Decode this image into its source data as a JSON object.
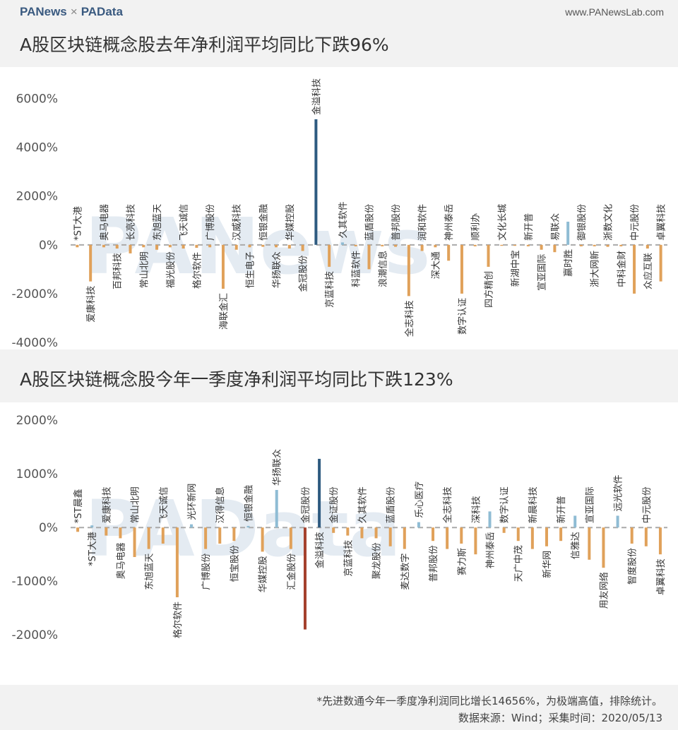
{
  "header": {
    "logo_left": "PANews",
    "times": "×",
    "logo_right": "PAData",
    "site": "www.PANewsLab.com"
  },
  "watermark": "PANews",
  "watermark2": "PAData",
  "notes": {
    "footnote": "*先进数通今年一季度净利润同比增长14656%，为极端高值，排除统计。",
    "source": "数据来源：Wind；采集时间：2020/05/13"
  },
  "colors": {
    "positive": "#8fbcd4",
    "negative": "#e0a15a",
    "max": "#2e5b80",
    "min": "#a4402c",
    "zero_line": "#aaaaaa"
  },
  "chart_data": [
    {
      "type": "bar",
      "title": "A股区块链概念股去年净利润平均同比下跌96%",
      "ylim": [
        -4000,
        7000
      ],
      "yticks": [
        -4000,
        -2000,
        0,
        2000,
        4000,
        6000
      ],
      "ytick_labels": [
        "-4000%",
        "-2000%",
        "0%",
        "2000%",
        "4000%",
        "6000%"
      ],
      "categories": [
        "*ST大港",
        "爱康科技",
        "奥马电器",
        "百邦科技",
        "长亮科技",
        "常山北明",
        "东旭蓝天",
        "福光股份",
        "飞天诚信",
        "格尔软件",
        "广博股份",
        "海联金汇",
        "汉威科技",
        "恒生电子",
        "恒银金融",
        "华扬联众",
        "华媒控股",
        "金冠股份",
        "金溢科技",
        "京蓝科技",
        "久其软件",
        "科蓝软件",
        "蓝盾股份",
        "浪潮信息",
        "普邦股份",
        "全志科技",
        "润和软件",
        "深大通",
        "神州泰岳",
        "数字认证",
        "顺利办",
        "四方精创",
        "文化长城",
        "新湖中宝",
        "新开普",
        "宣亚国际",
        "易联众",
        "赢时胜",
        "御银股份",
        "浙大网新",
        "浙数文化",
        "中科金财",
        "中元股份",
        "众应互联",
        "卓翼科技"
      ],
      "values": [
        -100,
        -1500,
        -100,
        -150,
        -350,
        -100,
        -200,
        -100,
        -150,
        -120,
        -100,
        -1800,
        -200,
        -100,
        -80,
        -100,
        -150,
        -250,
        5150,
        -900,
        100,
        -60,
        -1000,
        -60,
        -80,
        -2100,
        -250,
        -100,
        -650,
        -2000,
        -60,
        -900,
        -40,
        -40,
        -60,
        -200,
        -300,
        950,
        -60,
        -60,
        -80,
        -60,
        -2000,
        -150,
        -1500
      ]
    },
    {
      "type": "bar",
      "title": "A股区块链概念股今年一季度净利润平均同比下跌123%",
      "ylim": [
        -2800,
        2200
      ],
      "yticks": [
        -2000,
        -1000,
        0,
        1000,
        2000
      ],
      "ytick_labels": [
        "-2000%",
        "-1000%",
        "0%",
        "1000%",
        "2000%"
      ],
      "categories": [
        "*ST晨鑫",
        "*ST大港",
        "爱康科技",
        "奥马电器",
        "常山北明",
        "东旭蓝天",
        "飞天诚信",
        "格尔软件",
        "光环新网",
        "广博股份",
        "汉得信息",
        "恒宝股份",
        "恒银金融",
        "华媒控股",
        "华扬联众",
        "汇金股份",
        "金冠股份",
        "金溢科技",
        "金证股份",
        "京蓝科技",
        "久其软件",
        "聚龙股份",
        "蓝盾股份",
        "麦达数字",
        "乐心医疗",
        "普邦股份",
        "全志科技",
        "赛力斯",
        "深科技",
        "神州泰岳",
        "数字认证",
        "天广中茂",
        "新晨科技",
        "新华网",
        "新开普",
        "信雅达",
        "宣亚国际",
        "用友网络",
        "远光软件",
        "智度股份",
        "中元股份",
        "卓翼科技"
      ],
      "values": [
        -80,
        40,
        -150,
        -200,
        -550,
        -400,
        -300,
        -1300,
        60,
        -400,
        -300,
        -250,
        30,
        -450,
        700,
        -400,
        -1900,
        1280,
        -100,
        -150,
        -200,
        -200,
        -350,
        -400,
        100,
        -250,
        -400,
        -300,
        -500,
        300,
        -100,
        -250,
        -400,
        -350,
        -250,
        220,
        -600,
        -750,
        220,
        -300,
        -350,
        -500
      ]
    }
  ]
}
